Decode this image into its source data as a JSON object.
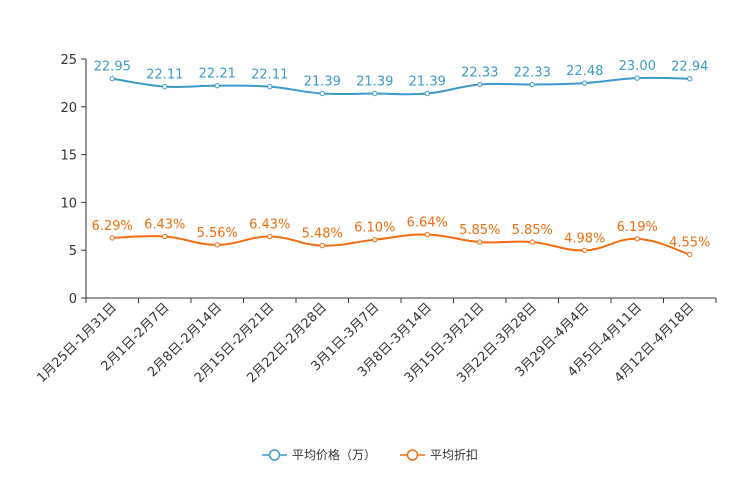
{
  "chart_data": {
    "type": "line",
    "title": "",
    "xlabel": "",
    "ylabel": "",
    "ylim": [
      0,
      25
    ],
    "yticks": [
      "0",
      "5",
      "10",
      "15",
      "20",
      "25"
    ],
    "categories": [
      "1月25日-1月31日",
      "2月1日-2月7日",
      "2月8日-2月14日",
      "2月15日-2月21日",
      "2月22日-2月28日",
      "3月1日-3月7日",
      "3月8日-3月14日",
      "3月15日-3月21日",
      "3月22日-3月28日",
      "3月29日-4月4日",
      "4月5日-4月11日",
      "4月12日-4月18日"
    ],
    "series": [
      {
        "name": "平均价格（万）",
        "color": "#3a9bca",
        "values": [
          22.95,
          22.11,
          22.21,
          22.11,
          21.39,
          21.39,
          21.39,
          22.33,
          22.33,
          22.48,
          23.0,
          22.94
        ],
        "labels": [
          "22.95",
          "22.11",
          "22.21",
          "22.11",
          "21.39",
          "21.39",
          "21.39",
          "22.33",
          "22.33",
          "22.48",
          "23.00",
          "22.94"
        ]
      },
      {
        "name": "平均折扣",
        "color": "#f26d0f",
        "values": [
          6.29,
          6.43,
          5.56,
          6.43,
          5.48,
          6.1,
          6.64,
          5.85,
          5.85,
          4.98,
          6.19,
          4.55
        ],
        "labels": [
          "6.29%",
          "6.43%",
          "5.56%",
          "6.43%",
          "5.48%",
          "6.10%",
          "6.64%",
          "5.85%",
          "5.85%",
          "4.98%",
          "6.19%",
          "4.55%"
        ]
      }
    ],
    "legend": "bottom-center",
    "grid": false
  }
}
